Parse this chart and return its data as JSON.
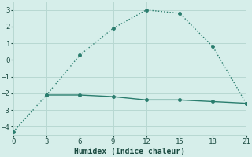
{
  "line1_x": [
    0,
    3,
    6,
    9,
    12,
    15,
    18,
    21
  ],
  "line1_y": [
    -4.3,
    -2.1,
    0.3,
    1.9,
    3.0,
    2.8,
    0.8,
    -2.6
  ],
  "line2_x": [
    3,
    6,
    9,
    12,
    15,
    18,
    21
  ],
  "line2_y": [
    -2.1,
    -2.1,
    -2.2,
    -2.4,
    -2.4,
    -2.5,
    -2.6
  ],
  "line_color": "#2a7d6e",
  "bg_color": "#d6eeea",
  "grid_color": "#b8d8d2",
  "xlabel": "Humidex (Indice chaleur)",
  "xlim": [
    0,
    21
  ],
  "ylim": [
    -4.5,
    3.5
  ],
  "xticks": [
    0,
    3,
    6,
    9,
    12,
    15,
    18,
    21
  ],
  "yticks": [
    -4,
    -3,
    -2,
    -1,
    0,
    1,
    2,
    3
  ],
  "font_color": "#1a4a40"
}
